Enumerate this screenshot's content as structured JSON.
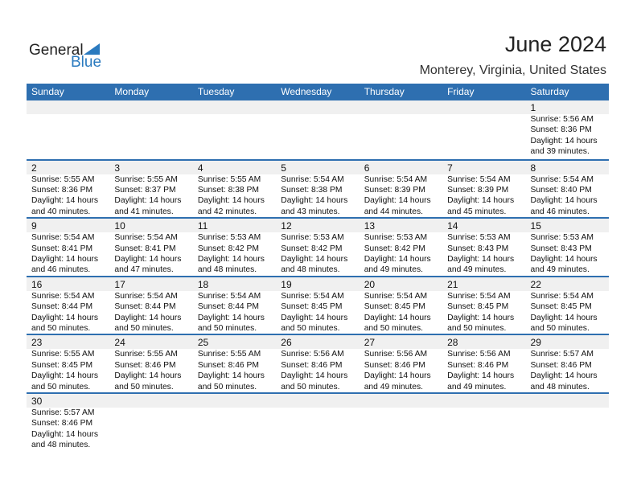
{
  "logo": {
    "line1": "General",
    "line2": "Blue",
    "color": "#2a7abf"
  },
  "title": "June 2024",
  "location": "Monterey, Virginia, United States",
  "header_color": "#2e6fb0",
  "weekdays": [
    "Sunday",
    "Monday",
    "Tuesday",
    "Wednesday",
    "Thursday",
    "Friday",
    "Saturday"
  ],
  "weeks": [
    [
      null,
      null,
      null,
      null,
      null,
      null,
      {
        "day": "1",
        "sunrise": "Sunrise: 5:56 AM",
        "sunset": "Sunset: 8:36 PM",
        "daylight": "Daylight: 14 hours",
        "minutes": "and 39 minutes."
      }
    ],
    [
      {
        "day": "2",
        "sunrise": "Sunrise: 5:55 AM",
        "sunset": "Sunset: 8:36 PM",
        "daylight": "Daylight: 14 hours",
        "minutes": "and 40 minutes."
      },
      {
        "day": "3",
        "sunrise": "Sunrise: 5:55 AM",
        "sunset": "Sunset: 8:37 PM",
        "daylight": "Daylight: 14 hours",
        "minutes": "and 41 minutes."
      },
      {
        "day": "4",
        "sunrise": "Sunrise: 5:55 AM",
        "sunset": "Sunset: 8:38 PM",
        "daylight": "Daylight: 14 hours",
        "minutes": "and 42 minutes."
      },
      {
        "day": "5",
        "sunrise": "Sunrise: 5:54 AM",
        "sunset": "Sunset: 8:38 PM",
        "daylight": "Daylight: 14 hours",
        "minutes": "and 43 minutes."
      },
      {
        "day": "6",
        "sunrise": "Sunrise: 5:54 AM",
        "sunset": "Sunset: 8:39 PM",
        "daylight": "Daylight: 14 hours",
        "minutes": "and 44 minutes."
      },
      {
        "day": "7",
        "sunrise": "Sunrise: 5:54 AM",
        "sunset": "Sunset: 8:39 PM",
        "daylight": "Daylight: 14 hours",
        "minutes": "and 45 minutes."
      },
      {
        "day": "8",
        "sunrise": "Sunrise: 5:54 AM",
        "sunset": "Sunset: 8:40 PM",
        "daylight": "Daylight: 14 hours",
        "minutes": "and 46 minutes."
      }
    ],
    [
      {
        "day": "9",
        "sunrise": "Sunrise: 5:54 AM",
        "sunset": "Sunset: 8:41 PM",
        "daylight": "Daylight: 14 hours",
        "minutes": "and 46 minutes."
      },
      {
        "day": "10",
        "sunrise": "Sunrise: 5:54 AM",
        "sunset": "Sunset: 8:41 PM",
        "daylight": "Daylight: 14 hours",
        "minutes": "and 47 minutes."
      },
      {
        "day": "11",
        "sunrise": "Sunrise: 5:53 AM",
        "sunset": "Sunset: 8:42 PM",
        "daylight": "Daylight: 14 hours",
        "minutes": "and 48 minutes."
      },
      {
        "day": "12",
        "sunrise": "Sunrise: 5:53 AM",
        "sunset": "Sunset: 8:42 PM",
        "daylight": "Daylight: 14 hours",
        "minutes": "and 48 minutes."
      },
      {
        "day": "13",
        "sunrise": "Sunrise: 5:53 AM",
        "sunset": "Sunset: 8:42 PM",
        "daylight": "Daylight: 14 hours",
        "minutes": "and 49 minutes."
      },
      {
        "day": "14",
        "sunrise": "Sunrise: 5:53 AM",
        "sunset": "Sunset: 8:43 PM",
        "daylight": "Daylight: 14 hours",
        "minutes": "and 49 minutes."
      },
      {
        "day": "15",
        "sunrise": "Sunrise: 5:53 AM",
        "sunset": "Sunset: 8:43 PM",
        "daylight": "Daylight: 14 hours",
        "minutes": "and 49 minutes."
      }
    ],
    [
      {
        "day": "16",
        "sunrise": "Sunrise: 5:54 AM",
        "sunset": "Sunset: 8:44 PM",
        "daylight": "Daylight: 14 hours",
        "minutes": "and 50 minutes."
      },
      {
        "day": "17",
        "sunrise": "Sunrise: 5:54 AM",
        "sunset": "Sunset: 8:44 PM",
        "daylight": "Daylight: 14 hours",
        "minutes": "and 50 minutes."
      },
      {
        "day": "18",
        "sunrise": "Sunrise: 5:54 AM",
        "sunset": "Sunset: 8:44 PM",
        "daylight": "Daylight: 14 hours",
        "minutes": "and 50 minutes."
      },
      {
        "day": "19",
        "sunrise": "Sunrise: 5:54 AM",
        "sunset": "Sunset: 8:45 PM",
        "daylight": "Daylight: 14 hours",
        "minutes": "and 50 minutes."
      },
      {
        "day": "20",
        "sunrise": "Sunrise: 5:54 AM",
        "sunset": "Sunset: 8:45 PM",
        "daylight": "Daylight: 14 hours",
        "minutes": "and 50 minutes."
      },
      {
        "day": "21",
        "sunrise": "Sunrise: 5:54 AM",
        "sunset": "Sunset: 8:45 PM",
        "daylight": "Daylight: 14 hours",
        "minutes": "and 50 minutes."
      },
      {
        "day": "22",
        "sunrise": "Sunrise: 5:54 AM",
        "sunset": "Sunset: 8:45 PM",
        "daylight": "Daylight: 14 hours",
        "minutes": "and 50 minutes."
      }
    ],
    [
      {
        "day": "23",
        "sunrise": "Sunrise: 5:55 AM",
        "sunset": "Sunset: 8:45 PM",
        "daylight": "Daylight: 14 hours",
        "minutes": "and 50 minutes."
      },
      {
        "day": "24",
        "sunrise": "Sunrise: 5:55 AM",
        "sunset": "Sunset: 8:46 PM",
        "daylight": "Daylight: 14 hours",
        "minutes": "and 50 minutes."
      },
      {
        "day": "25",
        "sunrise": "Sunrise: 5:55 AM",
        "sunset": "Sunset: 8:46 PM",
        "daylight": "Daylight: 14 hours",
        "minutes": "and 50 minutes."
      },
      {
        "day": "26",
        "sunrise": "Sunrise: 5:56 AM",
        "sunset": "Sunset: 8:46 PM",
        "daylight": "Daylight: 14 hours",
        "minutes": "and 50 minutes."
      },
      {
        "day": "27",
        "sunrise": "Sunrise: 5:56 AM",
        "sunset": "Sunset: 8:46 PM",
        "daylight": "Daylight: 14 hours",
        "minutes": "and 49 minutes."
      },
      {
        "day": "28",
        "sunrise": "Sunrise: 5:56 AM",
        "sunset": "Sunset: 8:46 PM",
        "daylight": "Daylight: 14 hours",
        "minutes": "and 49 minutes."
      },
      {
        "day": "29",
        "sunrise": "Sunrise: 5:57 AM",
        "sunset": "Sunset: 8:46 PM",
        "daylight": "Daylight: 14 hours",
        "minutes": "and 48 minutes."
      }
    ],
    [
      {
        "day": "30",
        "sunrise": "Sunrise: 5:57 AM",
        "sunset": "Sunset: 8:46 PM",
        "daylight": "Daylight: 14 hours",
        "minutes": "and 48 minutes."
      },
      null,
      null,
      null,
      null,
      null,
      null
    ]
  ]
}
